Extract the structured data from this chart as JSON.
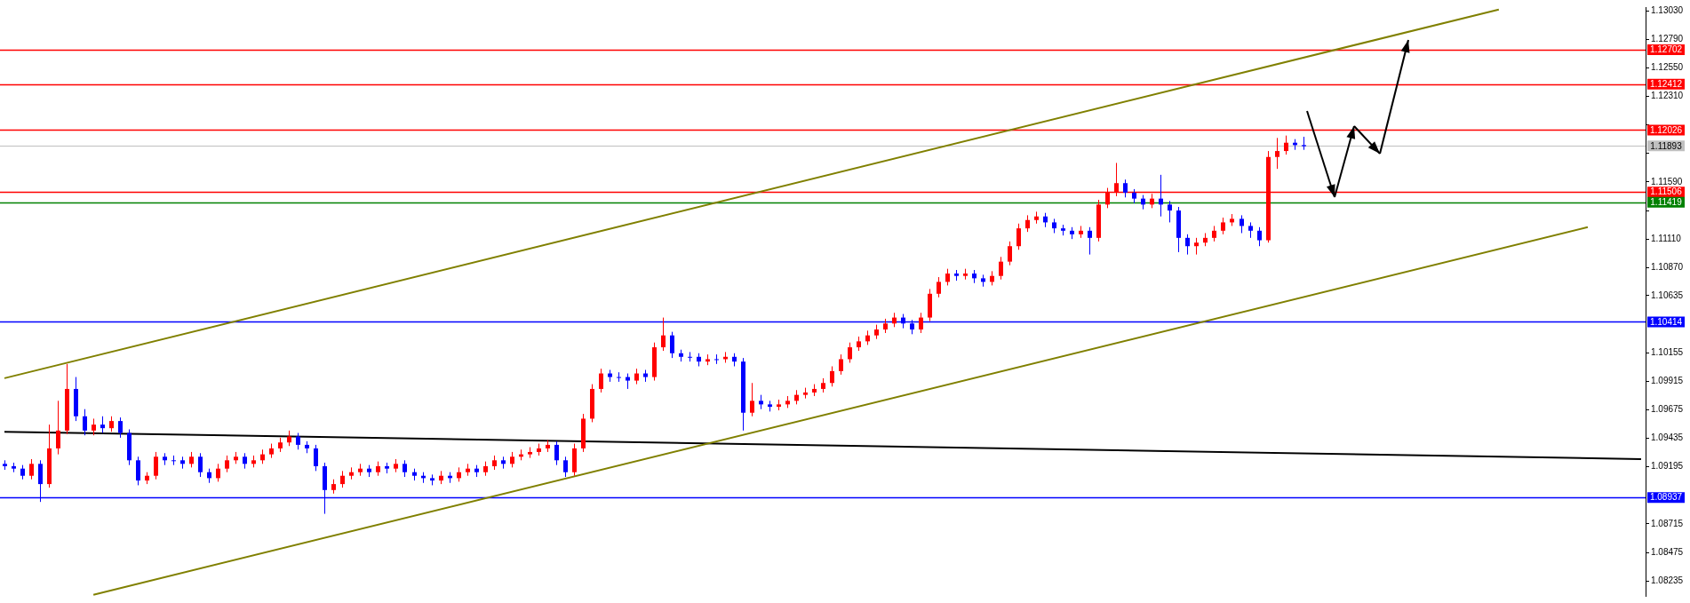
{
  "chart_data": {
    "type": "candlestick",
    "categories": [
      null,
      null,
      null,
      null,
      null,
      null,
      null,
      null,
      null,
      null,
      null,
      null,
      null,
      null,
      null,
      null,
      null,
      null,
      null,
      null,
      null,
      null,
      null,
      null,
      null,
      null,
      null,
      null,
      null,
      null,
      null,
      null,
      null,
      null,
      null,
      null,
      null,
      null,
      null,
      null,
      null,
      null,
      null,
      null,
      null,
      null,
      null,
      null,
      null,
      null,
      null,
      null,
      null,
      null,
      null,
      null,
      null,
      null,
      null,
      null,
      null,
      null,
      null,
      null,
      null,
      null,
      null,
      null,
      null,
      null,
      null,
      null,
      null,
      null,
      null,
      null,
      null,
      null,
      null,
      null,
      null,
      null,
      null,
      null,
      null,
      null,
      null,
      null,
      null,
      null,
      null,
      null,
      null,
      null,
      null,
      null,
      null,
      null,
      null,
      null,
      null,
      null,
      null,
      null,
      null,
      null,
      null,
      null,
      null,
      null,
      null,
      null,
      null,
      null,
      null,
      null,
      null,
      null,
      null,
      null,
      null,
      null,
      null,
      null,
      null,
      null,
      null,
      null,
      null,
      null,
      null,
      null,
      null,
      null,
      null,
      null,
      null,
      null,
      null,
      null,
      null,
      null,
      null,
      null,
      null,
      null,
      null,
      null,
      null,
      null,
      null,
      null,
      null,
      null,
      null,
      null,
      null,
      null,
      null,
      null,
      null,
      null,
      null,
      null,
      null,
      null,
      null,
      null,
      null,
      null,
      null,
      null,
      null,
      null,
      null,
      null,
      null,
      null,
      null,
      null,
      null,
      null,
      null,
      null,
      null
    ],
    "ohlc": [
      [
        1.0922,
        1.0925,
        1.0917,
        1.092
      ],
      [
        1.092,
        1.0923,
        1.0915,
        1.0918
      ],
      [
        1.0918,
        1.0921,
        1.0909,
        1.0912
      ],
      [
        1.0912,
        1.0926,
        1.0909,
        1.0922
      ],
      [
        1.0922,
        1.0925,
        1.089,
        1.0905
      ],
      [
        1.0905,
        1.0955,
        1.0902,
        1.0935
      ],
      [
        1.0935,
        1.0975,
        1.093,
        1.095
      ],
      [
        1.095,
        1.1006,
        1.0947,
        1.0985
      ],
      [
        1.0985,
        1.0995,
        1.0958,
        1.0962
      ],
      [
        1.0962,
        1.0968,
        1.0946,
        1.095
      ],
      [
        1.095,
        1.096,
        1.0946,
        1.0955
      ],
      [
        1.0955,
        1.0962,
        1.0948,
        1.0952
      ],
      [
        1.0952,
        1.0962,
        1.0949,
        1.0958
      ],
      [
        1.0958,
        1.0961,
        1.0944,
        1.0948
      ],
      [
        1.0948,
        1.0951,
        1.0921,
        1.0925
      ],
      [
        1.0925,
        1.0928,
        1.0904,
        1.0908
      ],
      [
        1.0908,
        1.0915,
        1.0905,
        1.0912
      ],
      [
        1.0912,
        1.0932,
        1.0909,
        1.0928
      ],
      [
        1.0928,
        1.0931,
        1.0921,
        1.0925
      ],
      [
        1.0925,
        1.0929,
        1.0921,
        1.0925
      ],
      [
        1.0925,
        1.0928,
        1.0918,
        1.0922
      ],
      [
        1.0922,
        1.0932,
        1.0919,
        1.0928
      ],
      [
        1.0928,
        1.0931,
        1.0911,
        1.0915
      ],
      [
        1.0915,
        1.0918,
        1.0906,
        1.091
      ],
      [
        1.091,
        1.0922,
        1.0907,
        1.0918
      ],
      [
        1.0918,
        1.0929,
        1.0915,
        1.0925
      ],
      [
        1.0925,
        1.0932,
        1.0922,
        1.0928
      ],
      [
        1.0928,
        1.0931,
        1.0918,
        1.0922
      ],
      [
        1.0922,
        1.0929,
        1.0919,
        1.0925
      ],
      [
        1.0925,
        1.0934,
        1.0922,
        1.093
      ],
      [
        1.093,
        1.0939,
        1.0927,
        1.0935
      ],
      [
        1.0935,
        1.0944,
        1.0932,
        1.094
      ],
      [
        1.094,
        1.095,
        1.0937,
        1.0945
      ],
      [
        1.0945,
        1.0948,
        1.0934,
        1.0938
      ],
      [
        1.0938,
        1.0941,
        1.0931,
        1.0935
      ],
      [
        1.0935,
        1.0938,
        1.0916,
        1.092
      ],
      [
        1.092,
        1.0923,
        1.088,
        1.09
      ],
      [
        1.09,
        1.0909,
        1.0897,
        1.0905
      ],
      [
        1.0905,
        1.0916,
        1.0902,
        1.0912
      ],
      [
        1.0912,
        1.0919,
        1.0909,
        1.0915
      ],
      [
        1.0915,
        1.0922,
        1.0912,
        1.0918
      ],
      [
        1.0918,
        1.0921,
        1.0911,
        1.0915
      ],
      [
        1.0915,
        1.0924,
        1.0912,
        1.092
      ],
      [
        1.092,
        1.0923,
        1.0914,
        1.0918
      ],
      [
        1.0918,
        1.0926,
        1.0915,
        1.0922
      ],
      [
        1.0922,
        1.0925,
        1.0911,
        1.0915
      ],
      [
        1.0915,
        1.0918,
        1.0908,
        1.0912
      ],
      [
        1.0912,
        1.0915,
        1.0906,
        1.091
      ],
      [
        1.091,
        1.0913,
        1.0904,
        1.0908
      ],
      [
        1.0908,
        1.0916,
        1.0905,
        1.0912
      ],
      [
        1.0912,
        1.0915,
        1.0906,
        1.091
      ],
      [
        1.091,
        1.0919,
        1.0907,
        1.0915
      ],
      [
        1.0915,
        1.0922,
        1.0912,
        1.0918
      ],
      [
        1.0918,
        1.0921,
        1.0911,
        1.0915
      ],
      [
        1.0915,
        1.0924,
        1.0912,
        1.092
      ],
      [
        1.092,
        1.0929,
        1.0917,
        1.0925
      ],
      [
        1.0925,
        1.0928,
        1.0918,
        1.0922
      ],
      [
        1.0922,
        1.0932,
        1.0919,
        1.0928
      ],
      [
        1.0928,
        1.0934,
        1.0925,
        1.093
      ],
      [
        1.093,
        1.0936,
        1.0927,
        1.0932
      ],
      [
        1.0932,
        1.0939,
        1.0929,
        1.0935
      ],
      [
        1.0935,
        1.0942,
        1.0932,
        1.0938
      ],
      [
        1.0938,
        1.0941,
        1.0921,
        1.0925
      ],
      [
        1.0925,
        1.0928,
        1.0911,
        1.0915
      ],
      [
        1.0915,
        1.0939,
        1.0912,
        1.0935
      ],
      [
        1.0935,
        1.0964,
        1.0932,
        1.096
      ],
      [
        1.096,
        1.0989,
        1.0957,
        1.0985
      ],
      [
        1.0985,
        1.1002,
        1.0982,
        1.0998
      ],
      [
        1.0998,
        1.1001,
        1.0991,
        1.0995
      ],
      [
        1.0995,
        1.0999,
        1.0991,
        1.0995
      ],
      [
        1.0995,
        1.0998,
        1.0985,
        1.0992
      ],
      [
        1.0992,
        1.1002,
        1.0989,
        1.0998
      ],
      [
        1.0998,
        1.1001,
        1.0991,
        1.0995
      ],
      [
        1.0995,
        1.1024,
        1.0992,
        1.102
      ],
      [
        1.102,
        1.1045,
        1.1017,
        1.103
      ],
      [
        1.103,
        1.1033,
        1.1011,
        1.1015
      ],
      [
        1.1015,
        1.1018,
        1.1008,
        1.1012
      ],
      [
        1.1012,
        1.1016,
        1.1008,
        1.1012
      ],
      [
        1.1012,
        1.1015,
        1.1004,
        1.1008
      ],
      [
        1.1008,
        1.1014,
        1.1005,
        1.101
      ],
      [
        1.101,
        1.1014,
        1.1006,
        1.101
      ],
      [
        1.101,
        1.1016,
        1.1007,
        1.1012
      ],
      [
        1.1012,
        1.1015,
        1.1004,
        1.1008
      ],
      [
        1.1008,
        1.1011,
        1.095,
        1.0965
      ],
      [
        1.0965,
        1.099,
        1.0962,
        1.0975
      ],
      [
        1.0975,
        1.098,
        1.0968,
        1.0972
      ],
      [
        1.0972,
        1.0975,
        1.0966,
        1.097
      ],
      [
        1.097,
        1.0976,
        1.0967,
        1.0972
      ],
      [
        1.0972,
        1.0979,
        1.0969,
        1.0975
      ],
      [
        1.0975,
        1.0984,
        1.0972,
        1.098
      ],
      [
        1.098,
        1.0986,
        1.0977,
        1.0982
      ],
      [
        1.0982,
        1.0989,
        1.0979,
        1.0985
      ],
      [
        1.0985,
        1.0994,
        1.0982,
        1.099
      ],
      [
        1.099,
        1.1004,
        1.0987,
        1.1
      ],
      [
        1.1,
        1.1014,
        1.0997,
        1.101
      ],
      [
        1.101,
        1.1024,
        1.1007,
        1.102
      ],
      [
        1.102,
        1.1029,
        1.1017,
        1.1025
      ],
      [
        1.1025,
        1.1034,
        1.1022,
        1.103
      ],
      [
        1.103,
        1.1039,
        1.1027,
        1.1035
      ],
      [
        1.1035,
        1.1044,
        1.1032,
        1.104
      ],
      [
        1.104,
        1.1049,
        1.1037,
        1.1045
      ],
      [
        1.1045,
        1.1048,
        1.1036,
        1.104
      ],
      [
        1.104,
        1.1043,
        1.1031,
        1.1035
      ],
      [
        1.1035,
        1.1049,
        1.1032,
        1.1045
      ],
      [
        1.1045,
        1.1069,
        1.1042,
        1.1065
      ],
      [
        1.1065,
        1.1079,
        1.1062,
        1.1075
      ],
      [
        1.1075,
        1.1086,
        1.1072,
        1.1082
      ],
      [
        1.1082,
        1.1085,
        1.1076,
        1.108
      ],
      [
        1.108,
        1.1086,
        1.1077,
        1.1082
      ],
      [
        1.1082,
        1.1085,
        1.1074,
        1.1078
      ],
      [
        1.1078,
        1.1081,
        1.1071,
        1.1075
      ],
      [
        1.1075,
        1.1084,
        1.1072,
        1.108
      ],
      [
        1.108,
        1.1096,
        1.1077,
        1.1092
      ],
      [
        1.1092,
        1.1109,
        1.1089,
        1.1105
      ],
      [
        1.1105,
        1.1124,
        1.1102,
        1.112
      ],
      [
        1.112,
        1.1131,
        1.1117,
        1.1127
      ],
      [
        1.1127,
        1.1134,
        1.1124,
        1.113
      ],
      [
        1.113,
        1.1133,
        1.1121,
        1.1125
      ],
      [
        1.1125,
        1.1128,
        1.1116,
        1.112
      ],
      [
        1.112,
        1.1123,
        1.1114,
        1.1118
      ],
      [
        1.1118,
        1.1121,
        1.1111,
        1.1115
      ],
      [
        1.1115,
        1.1122,
        1.1112,
        1.1118
      ],
      [
        1.1118,
        1.1121,
        1.1098,
        1.1112
      ],
      [
        1.1112,
        1.1144,
        1.1109,
        1.114
      ],
      [
        1.114,
        1.1154,
        1.1137,
        1.115
      ],
      [
        1.115,
        1.1175,
        1.1147,
        1.1158
      ],
      [
        1.1158,
        1.1161,
        1.1146,
        1.115
      ],
      [
        1.115,
        1.1153,
        1.1141,
        1.1145
      ],
      [
        1.1145,
        1.1148,
        1.1136,
        1.114
      ],
      [
        1.114,
        1.1149,
        1.1137,
        1.1145
      ],
      [
        1.1145,
        1.1165,
        1.113,
        1.114
      ],
      [
        1.114,
        1.1143,
        1.1125,
        1.1135
      ],
      [
        1.1135,
        1.1138,
        1.11,
        1.1112
      ],
      [
        1.1112,
        1.1115,
        1.1098,
        1.1105
      ],
      [
        1.1105,
        1.1112,
        1.1098,
        1.1108
      ],
      [
        1.1108,
        1.1116,
        1.1105,
        1.1112
      ],
      [
        1.1112,
        1.1122,
        1.1109,
        1.1118
      ],
      [
        1.1118,
        1.1129,
        1.1115,
        1.1125
      ],
      [
        1.1125,
        1.1132,
        1.1122,
        1.1128
      ],
      [
        1.1128,
        1.1131,
        1.1116,
        1.1122
      ],
      [
        1.1122,
        1.1125,
        1.1112,
        1.1118
      ],
      [
        1.1118,
        1.1121,
        1.1105,
        1.111
      ],
      [
        1.111,
        1.1185,
        1.1108,
        1.118
      ],
      [
        1.118,
        1.1196,
        1.117,
        1.1185
      ],
      [
        1.1185,
        1.1198,
        1.1182,
        1.1192
      ],
      [
        1.1192,
        1.1195,
        1.1186,
        1.119
      ],
      [
        1.119,
        1.1197,
        1.1186,
        1.1189
      ],
      null,
      null,
      null,
      null,
      null,
      null,
      null,
      null,
      null,
      null,
      null,
      null,
      null,
      null,
      null,
      null,
      null,
      null,
      null,
      null,
      null,
      null,
      null,
      null,
      null,
      null,
      null,
      null,
      null,
      null,
      null,
      null,
      null,
      null,
      null,
      null,
      null,
      null
    ],
    "colors": [
      "#0000ff",
      "#0000ff",
      "#0000ff",
      "#ff0000",
      "#0000ff",
      "#ff0000",
      "#ff0000",
      "#ff0000",
      "#0000ff",
      "#0000ff",
      "#ff0000",
      "#0000ff",
      "#ff0000",
      "#0000ff",
      "#0000ff",
      "#0000ff",
      "#ff0000",
      "#ff0000",
      "#0000ff",
      "#0000ff",
      "#0000ff",
      "#ff0000",
      "#0000ff",
      "#0000ff",
      "#ff0000",
      "#ff0000",
      "#ff0000",
      "#0000ff",
      "#ff0000",
      "#ff0000",
      "#ff0000",
      "#ff0000",
      "#ff0000",
      "#0000ff",
      "#0000ff",
      "#0000ff",
      "#0000ff",
      "#ff0000",
      "#ff0000",
      "#ff0000",
      "#ff0000",
      "#0000ff",
      "#ff0000",
      "#0000ff",
      "#ff0000",
      "#0000ff",
      "#0000ff",
      "#0000ff",
      "#0000ff",
      "#ff0000",
      "#0000ff",
      "#ff0000",
      "#ff0000",
      "#0000ff",
      "#ff0000",
      "#ff0000",
      "#0000ff",
      "#ff0000",
      "#ff0000",
      "#ff0000",
      "#ff0000",
      "#ff0000",
      "#0000ff",
      "#0000ff",
      "#ff0000",
      "#ff0000",
      "#ff0000",
      "#ff0000",
      "#0000ff",
      "#0000ff",
      "#0000ff",
      "#ff0000",
      "#0000ff",
      "#ff0000",
      "#ff0000",
      "#0000ff",
      "#0000ff",
      "#0000ff",
      "#0000ff",
      "#ff0000",
      "#0000ff",
      "#ff0000",
      "#0000ff",
      "#0000ff",
      "#ff0000",
      "#0000ff",
      "#0000ff",
      "#ff0000",
      "#ff0000",
      "#ff0000",
      "#ff0000",
      "#ff0000",
      "#ff0000",
      "#ff0000",
      "#ff0000",
      "#ff0000",
      "#ff0000",
      "#ff0000",
      "#ff0000",
      "#ff0000",
      "#ff0000",
      "#0000ff",
      "#0000ff",
      "#ff0000",
      "#ff0000",
      "#ff0000",
      "#ff0000",
      "#0000ff",
      "#ff0000",
      "#0000ff",
      "#0000ff",
      "#ff0000",
      "#ff0000",
      "#ff0000",
      "#ff0000",
      "#ff0000",
      "#ff0000",
      "#0000ff",
      "#0000ff",
      "#0000ff",
      "#0000ff",
      "#ff0000",
      "#0000ff",
      "#ff0000",
      "#ff0000",
      "#ff0000",
      "#0000ff",
      "#0000ff",
      "#0000ff",
      "#ff0000",
      "#0000ff",
      "#0000ff",
      "#0000ff",
      "#0000ff",
      "#ff0000",
      "#ff0000",
      "#ff0000",
      "#ff0000",
      "#ff0000",
      "#0000ff",
      "#0000ff",
      "#0000ff",
      "#ff0000",
      "#ff0000",
      "#ff0000",
      "#0000ff",
      "#0000ff",
      null,
      null,
      null,
      null,
      null,
      null,
      null,
      null,
      null,
      null,
      null,
      null,
      null,
      null,
      null,
      null,
      null,
      null,
      null,
      null,
      null,
      null,
      null,
      null,
      null,
      null,
      null,
      null,
      null,
      null,
      null,
      null,
      null,
      null,
      null,
      null,
      null,
      null
    ],
    "series": [
      {
        "type": "line",
        "color": "#808000",
        "values": [
          1.0994,
          null,
          null,
          null,
          null,
          null,
          null,
          null,
          null,
          null,
          null,
          null,
          null,
          null,
          null,
          null,
          null,
          null,
          null,
          null,
          null,
          null,
          null,
          null,
          null,
          null,
          null,
          null,
          null,
          null,
          null,
          null,
          null,
          null,
          null,
          null,
          null,
          null,
          null,
          null,
          null,
          null,
          null,
          null,
          null,
          null,
          null,
          null,
          null,
          null,
          null,
          null,
          null,
          null,
          null,
          null,
          null,
          null,
          null,
          null,
          null,
          null,
          null,
          null,
          null,
          null,
          null,
          null,
          null,
          null,
          null,
          null,
          null,
          null,
          null,
          null,
          null,
          null,
          null,
          null,
          null,
          null,
          null,
          null,
          null,
          null,
          null,
          null,
          null,
          null,
          null,
          null,
          null,
          null,
          null,
          null,
          null,
          null,
          null,
          null,
          null,
          null,
          null,
          null,
          null,
          null,
          null,
          null,
          null,
          null,
          null,
          null,
          null,
          null,
          null,
          null,
          null,
          null,
          null,
          null,
          null,
          null,
          null,
          null,
          null,
          null,
          null,
          null,
          null,
          null,
          null,
          null,
          null,
          null,
          null,
          null,
          null,
          null,
          null,
          null,
          null,
          null,
          null,
          null,
          null,
          null,
          null,
          null,
          null,
          null,
          null,
          null,
          null,
          null,
          null,
          null,
          null,
          null,
          null,
          null,
          null,
          null,
          null,
          null,
          null,
          null,
          null,
          null,
          1.1304,
          null,
          null,
          null,
          null,
          null,
          null,
          null,
          null,
          null,
          null,
          null,
          null,
          null,
          null,
          null,
          null
        ]
      },
      {
        "type": "line",
        "color": "#808000",
        "values": [
          null,
          null,
          null,
          null,
          null,
          null,
          null,
          null,
          null,
          null,
          1.0812,
          null,
          null,
          null,
          null,
          null,
          null,
          null,
          null,
          null,
          null,
          null,
          null,
          null,
          null,
          null,
          null,
          null,
          null,
          null,
          null,
          null,
          null,
          null,
          null,
          null,
          null,
          null,
          null,
          null,
          null,
          null,
          null,
          null,
          null,
          null,
          null,
          null,
          null,
          null,
          null,
          null,
          null,
          null,
          null,
          null,
          null,
          null,
          null,
          null,
          null,
          null,
          null,
          null,
          null,
          null,
          null,
          null,
          null,
          null,
          null,
          null,
          null,
          null,
          null,
          null,
          null,
          null,
          null,
          null,
          null,
          null,
          null,
          null,
          null,
          null,
          null,
          null,
          null,
          null,
          null,
          null,
          null,
          null,
          null,
          null,
          null,
          null,
          null,
          null,
          null,
          null,
          null,
          null,
          null,
          null,
          null,
          null,
          null,
          null,
          null,
          null,
          null,
          null,
          null,
          null,
          null,
          null,
          null,
          null,
          null,
          null,
          null,
          null,
          null,
          null,
          null,
          null,
          null,
          null,
          null,
          null,
          null,
          null,
          null,
          null,
          null,
          null,
          null,
          null,
          null,
          null,
          null,
          null,
          null,
          null,
          null,
          null,
          null,
          null,
          null,
          null,
          null,
          null,
          null,
          null,
          null,
          null,
          null,
          null,
          null,
          null,
          null,
          null,
          null,
          null,
          null,
          null,
          null,
          null,
          null,
          null,
          null,
          null,
          null,
          null,
          null,
          null,
          1.1121,
          null,
          null,
          null,
          null,
          null,
          null
        ]
      },
      {
        "type": "line",
        "color": "#000000",
        "values": [
          1.0949,
          null,
          null,
          null,
          null,
          null,
          null,
          null,
          null,
          null,
          null,
          null,
          null,
          null,
          null,
          null,
          null,
          null,
          null,
          null,
          null,
          null,
          null,
          null,
          null,
          null,
          null,
          null,
          null,
          null,
          null,
          null,
          null,
          null,
          null,
          null,
          null,
          null,
          null,
          null,
          null,
          null,
          null,
          null,
          null,
          null,
          null,
          null,
          null,
          null,
          null,
          null,
          null,
          null,
          null,
          null,
          null,
          null,
          null,
          null,
          null,
          null,
          null,
          null,
          null,
          null,
          null,
          null,
          null,
          null,
          null,
          null,
          null,
          null,
          null,
          null,
          null,
          null,
          null,
          null,
          null,
          null,
          null,
          null,
          null,
          null,
          null,
          null,
          null,
          null,
          null,
          null,
          null,
          null,
          null,
          null,
          null,
          null,
          null,
          null,
          null,
          null,
          null,
          null,
          null,
          null,
          null,
          null,
          null,
          null,
          null,
          null,
          null,
          null,
          null,
          null,
          null,
          null,
          null,
          null,
          null,
          null,
          null,
          null,
          null,
          null,
          null,
          null,
          null,
          null,
          null,
          null,
          null,
          null,
          null,
          null,
          null,
          null,
          null,
          null,
          null,
          null,
          null,
          null,
          null,
          null,
          null,
          null,
          null,
          null,
          null,
          null,
          null,
          null,
          null,
          null,
          null,
          null,
          null,
          null,
          null,
          null,
          null,
          null,
          null,
          null,
          null,
          null,
          null,
          null,
          null,
          null,
          null,
          null,
          null,
          null,
          null,
          null,
          null,
          null,
          null,
          null,
          null,
          null,
          1.0926
        ]
      }
    ],
    "ylim": [
      1.0811,
      1.1306
    ],
    "yticks": [
      {
        "value": 1.1303,
        "label": "1.13030"
      },
      {
        "value": 1.1279,
        "label": "1.12790"
      },
      {
        "value": 1.1255,
        "label": "1.12550"
      },
      {
        "value": 1.1231,
        "label": "1.12310"
      },
      {
        "value": 1.1207,
        "label": null
      },
      {
        "value": 1.1183,
        "label": null
      },
      {
        "value": 1.1159,
        "label": "1.11590"
      },
      {
        "value": 1.1135,
        "label": null
      },
      {
        "value": 1.1111,
        "label": "1.11110"
      },
      {
        "value": 1.1087,
        "label": "1.10870"
      },
      {
        "value": 1.10635,
        "label": "1.10635"
      },
      {
        "value": 1.10155,
        "label": "1.10155"
      },
      {
        "value": 1.09915,
        "label": "1.09915"
      },
      {
        "value": 1.09675,
        "label": "1.09675"
      },
      {
        "value": 1.09435,
        "label": "1.09435"
      },
      {
        "value": 1.09195,
        "label": "1.09195"
      },
      {
        "value": 1.08715,
        "label": "1.08715"
      },
      {
        "value": 1.08475,
        "label": "1.08475"
      },
      {
        "value": 1.08235,
        "label": "1.08235"
      }
    ],
    "ref_lines": [
      {
        "axis": "y",
        "value": 1.12702,
        "label": "1.12702",
        "color": "#ff0000"
      },
      {
        "axis": "y",
        "value": 1.12412,
        "label": "1.12412",
        "color": "#ff0000"
      },
      {
        "axis": "y",
        "value": 1.12026,
        "label": "1.12026",
        "color": "#ff0000"
      },
      {
        "axis": "y",
        "value": 1.11893,
        "label": "1.11893",
        "color": "#c0c0c0"
      },
      {
        "axis": "y",
        "value": 1.11506,
        "label": "1.11506",
        "color": "#ff0000"
      },
      {
        "axis": "y",
        "value": 1.11419,
        "label": "1.11419",
        "color": "#008000"
      },
      {
        "axis": "y",
        "value": 1.10414,
        "label": "1.10414",
        "color": "#0000ff"
      },
      {
        "axis": "y",
        "value": 1.08937,
        "label": "1.08937",
        "color": "#0000ff"
      }
    ],
    "grid": false,
    "legend": false
  }
}
